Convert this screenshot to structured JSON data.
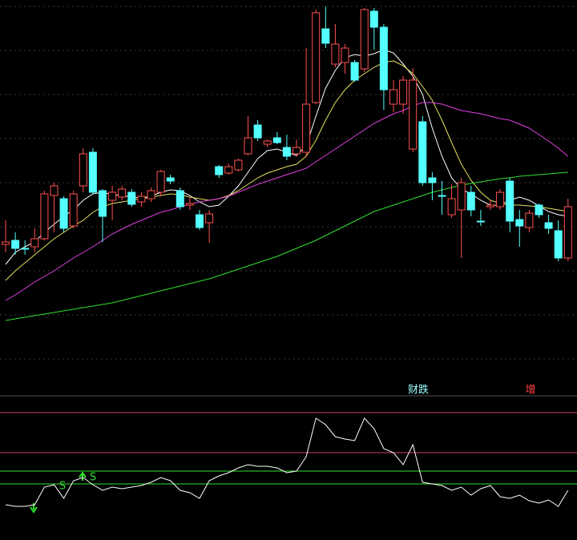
{
  "chart_data": [
    {
      "type": "candlestick",
      "up_color": "#ff5050",
      "down_color": "#54ffff",
      "open": [
        165,
        170,
        160,
        162,
        172,
        226,
        222,
        188,
        238,
        280,
        232,
        220,
        224,
        230,
        218,
        222,
        230,
        248,
        232,
        214,
        202,
        192,
        262,
        254,
        258,
        278,
        314,
        290,
        298,
        286,
        278,
        280,
        342,
        434,
        390,
        392,
        392,
        384,
        456,
        436,
        340,
        340,
        284,
        318,
        248,
        226,
        202,
        208,
        230,
        194,
        212,
        212,
        244,
        196,
        186,
        214,
        192,
        182,
        148
      ],
      "close": [
        168,
        160,
        160,
        172,
        228,
        238,
        185,
        228,
        278,
        230,
        200,
        230,
        234,
        215,
        225,
        232,
        256,
        244,
        212,
        216,
        186,
        203,
        252,
        262,
        270,
        298,
        298,
        294,
        292,
        275,
        286,
        340,
        454,
        416,
        415,
        410,
        370,
        458,
        436,
        358,
        358,
        370,
        370,
        242,
        242,
        226,
        222,
        242,
        208,
        194,
        214,
        230,
        194,
        188,
        204,
        202,
        185,
        148,
        212
      ],
      "high": [
        195,
        180,
        170,
        185,
        232,
        242,
        225,
        232,
        285,
        285,
        234,
        238,
        238,
        234,
        230,
        236,
        258,
        252,
        236,
        224,
        208,
        208,
        264,
        266,
        272,
        325,
        320,
        296,
        305,
        302,
        296,
        410,
        458,
        462,
        440,
        415,
        395,
        460,
        460,
        440,
        370,
        375,
        385,
        325,
        255,
        244,
        240,
        248,
        238,
        208,
        220,
        234,
        248,
        208,
        208,
        216,
        202,
        195,
        222
      ],
      "low": [
        155,
        152,
        152,
        155,
        170,
        180,
        180,
        185,
        230,
        228,
        168,
        195,
        220,
        212,
        212,
        218,
        225,
        240,
        208,
        208,
        183,
        167,
        248,
        252,
        256,
        276,
        294,
        286,
        290,
        270,
        274,
        275,
        340,
        410,
        386,
        378,
        368,
        380,
        408,
        333,
        330,
        328,
        280,
        238,
        220,
        202,
        198,
        148,
        200,
        188,
        208,
        208,
        180,
        162,
        180,
        198,
        178,
        144,
        144
      ],
      "lines": [
        {
          "color": "#ffffff",
          "values": [
            140,
            155,
            162,
            168,
            180,
            190,
            200,
            208,
            220,
            228,
            230,
            227,
            226,
            224,
            223,
            225,
            230,
            233,
            232,
            226,
            218,
            212,
            214,
            225,
            238,
            255,
            272,
            282,
            284,
            280,
            276,
            288,
            325,
            360,
            382,
            398,
            402,
            400,
            403,
            408,
            404,
            390,
            375,
            352,
            310,
            275,
            248,
            234,
            228,
            220,
            214,
            214,
            220,
            224,
            220,
            213,
            206,
            202,
            200
          ]
        },
        {
          "color": "#e6e05a",
          "values": [
            120,
            132,
            142,
            152,
            162,
            172,
            180,
            188,
            195,
            205,
            212,
            216,
            218,
            220,
            222,
            224,
            226,
            228,
            227,
            224,
            222,
            220,
            222,
            226,
            232,
            240,
            248,
            254,
            258,
            262,
            265,
            275,
            295,
            320,
            342,
            358,
            370,
            378,
            386,
            392,
            394,
            388,
            378,
            362,
            345,
            320,
            292,
            265,
            245,
            230,
            220,
            216,
            214,
            214,
            213,
            212,
            210,
            208,
            206
          ]
        },
        {
          "color": "#e040e0",
          "values": [
            95,
            102,
            110,
            118,
            125,
            132,
            140,
            148,
            155,
            162,
            170,
            178,
            184,
            190,
            195,
            200,
            205,
            208,
            212,
            215,
            218,
            220,
            222,
            225,
            230,
            235,
            240,
            244,
            248,
            252,
            256,
            260,
            268,
            276,
            284,
            292,
            300,
            308,
            316,
            322,
            328,
            332,
            338,
            342,
            342,
            340,
            336,
            332,
            330,
            328,
            325,
            322,
            320,
            315,
            310,
            302,
            294,
            285,
            275
          ]
        },
        {
          "color": "#30e030",
          "values": [
            70,
            72,
            74,
            76,
            78,
            80,
            82,
            84,
            86,
            88,
            90,
            92,
            95,
            98,
            101,
            104,
            107,
            110,
            113,
            116,
            119,
            122,
            126,
            130,
            134,
            138,
            142,
            146,
            150,
            155,
            160,
            165,
            170,
            176,
            182,
            188,
            194,
            200,
            206,
            210,
            214,
            218,
            222,
            226,
            230,
            233,
            236,
            239,
            241,
            243,
            245,
            247,
            248,
            250,
            251,
            252,
            253,
            254,
            255
          ]
        }
      ]
    },
    {
      "type": "line",
      "annotations": [
        {
          "text": "财跌",
          "color": "#a0ffff"
        },
        {
          "text": "增",
          "color": "#ff4040"
        },
        {
          "text": "S",
          "color": "#30e030"
        },
        {
          "text": "S",
          "color": "#30e030"
        }
      ],
      "levels": [
        {
          "value": 159,
          "color": "#d03a7a"
        },
        {
          "value": 109,
          "color": "#d03a7a"
        },
        {
          "value": 86,
          "color": "#30e030"
        },
        {
          "value": 70,
          "color": "#30e030"
        }
      ],
      "color": "#ffffff",
      "values": [
        44,
        42,
        42,
        44,
        66,
        69,
        52,
        74,
        78,
        69,
        62,
        66,
        64,
        66,
        68,
        72,
        78,
        74,
        62,
        59,
        52,
        74,
        80,
        84,
        90,
        94,
        92,
        92,
        90,
        84,
        86,
        104,
        152,
        144,
        129,
        126,
        124,
        152,
        139,
        114,
        109,
        94,
        119,
        72,
        70,
        68,
        62,
        66,
        56,
        64,
        68,
        54,
        52,
        56,
        49,
        46,
        50,
        42,
        62
      ]
    }
  ]
}
